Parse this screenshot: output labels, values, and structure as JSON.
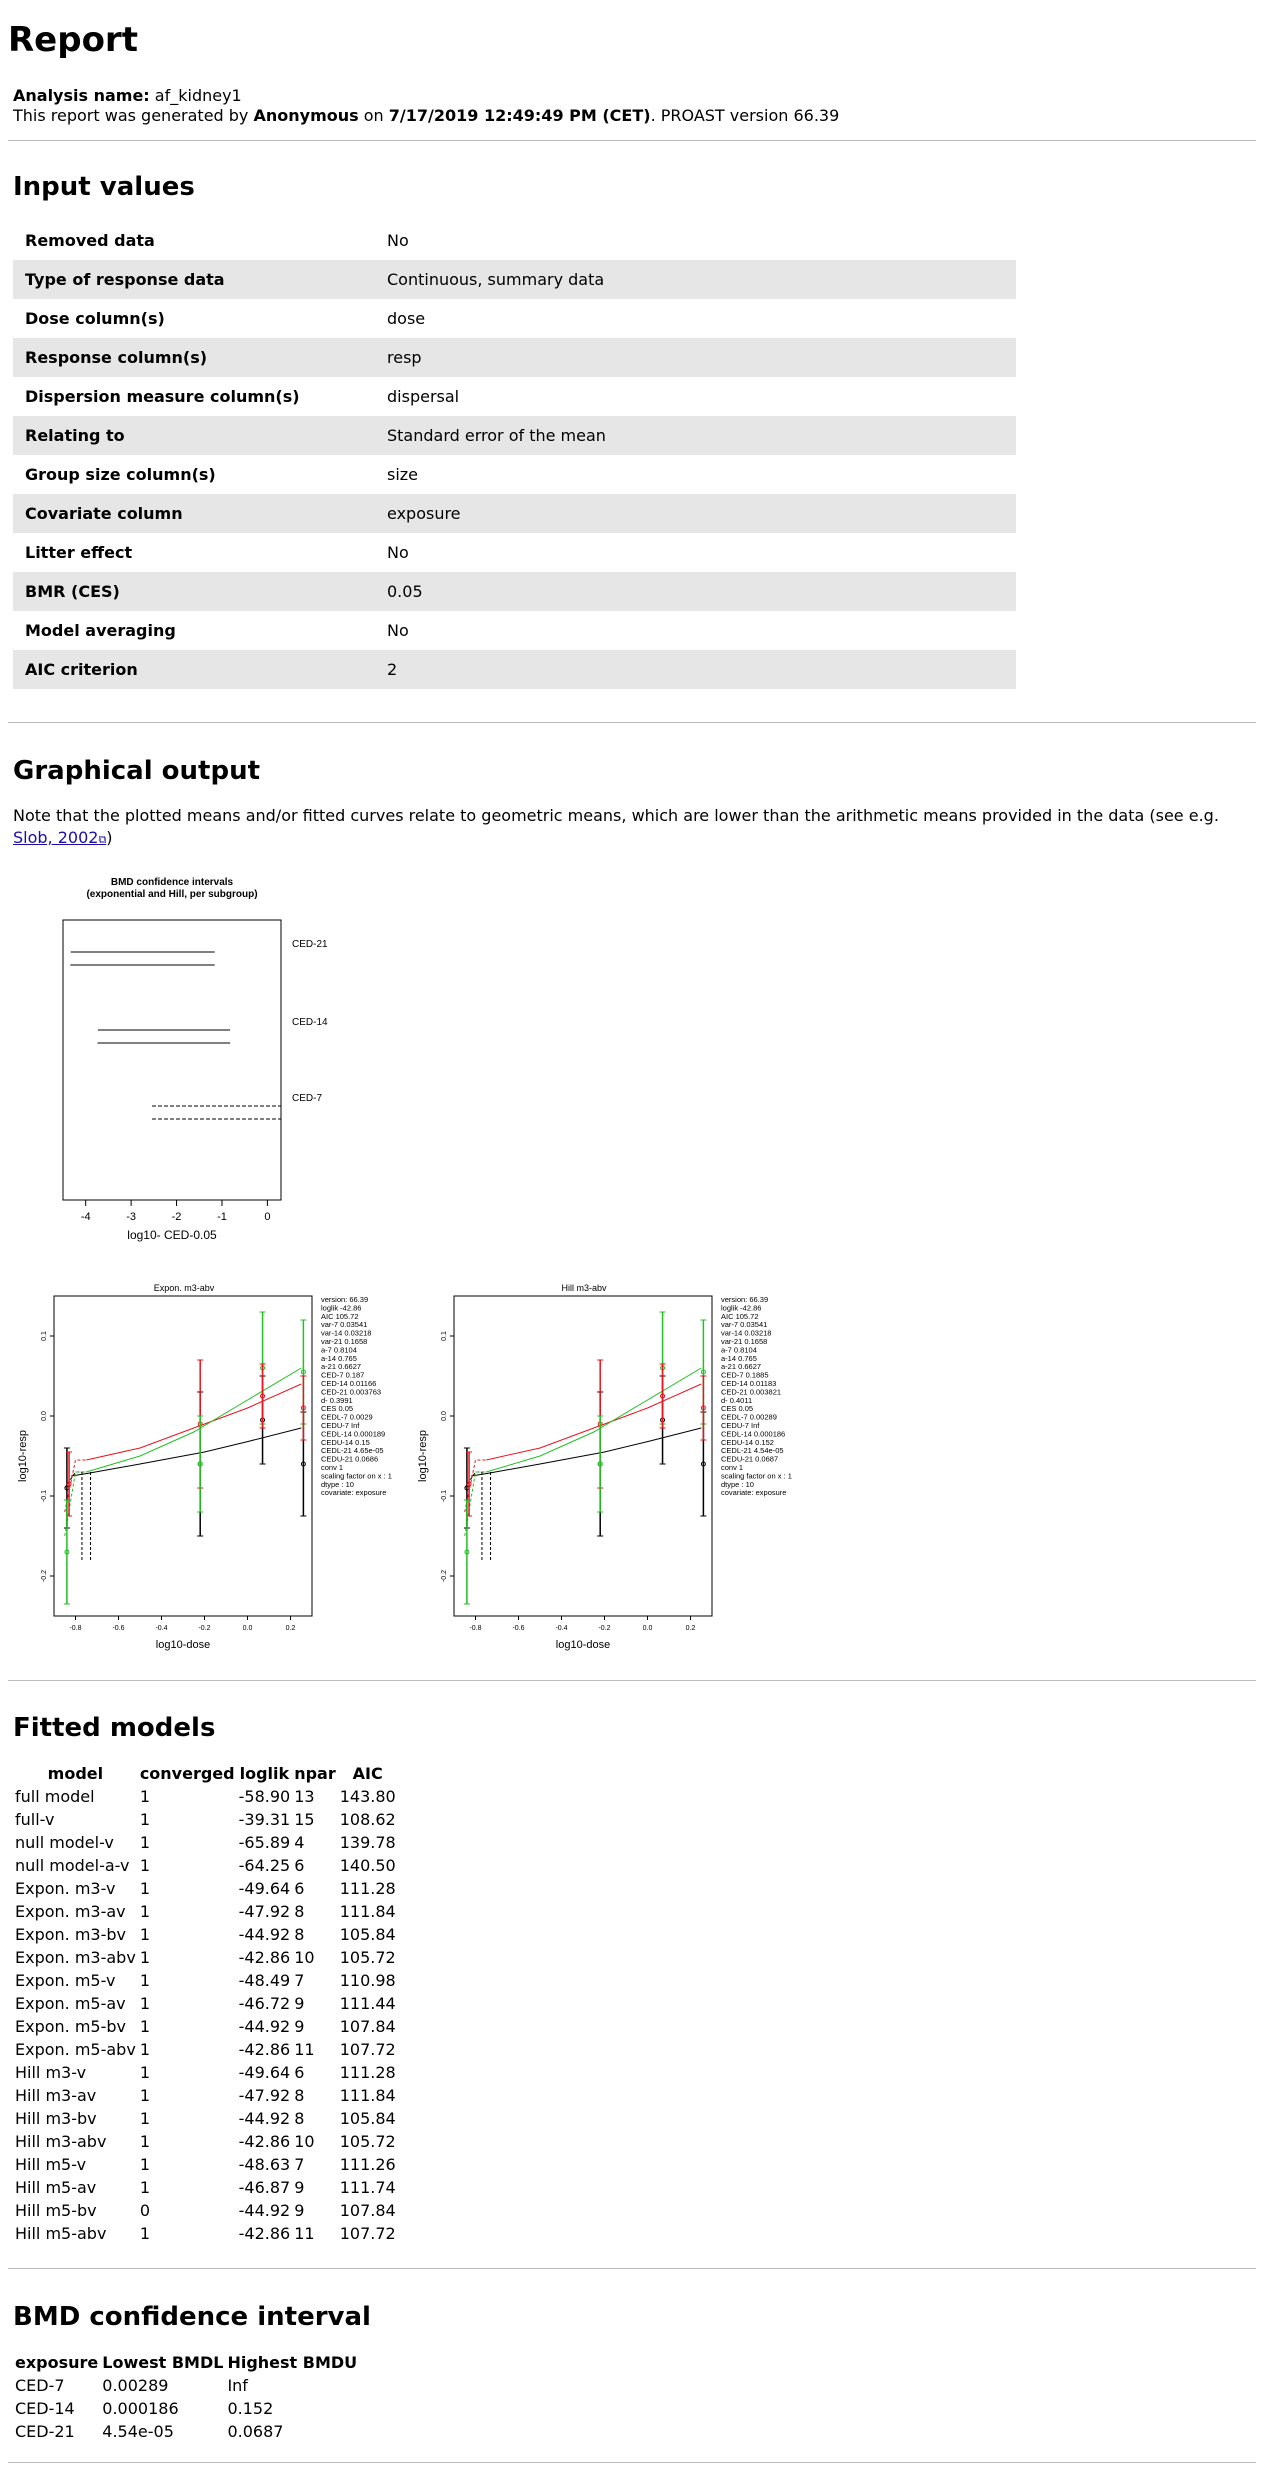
{
  "report": {
    "title": "Report",
    "analysis_label": "Analysis name:",
    "analysis_name": "af_kidney1",
    "gen_prefix": "This report was generated by",
    "author": "Anonymous",
    "gen_on": "on",
    "datetime": "7/17/2019 12:49:49 PM (CET)",
    "version_text": ". PROAST version 66.39"
  },
  "inputs": {
    "title": "Input values",
    "rows": [
      {
        "k": "Removed data",
        "v": "No"
      },
      {
        "k": "Type of response data",
        "v": "Continuous, summary data"
      },
      {
        "k": "Dose column(s)",
        "v": "dose"
      },
      {
        "k": "Response column(s)",
        "v": "resp"
      },
      {
        "k": "Dispersion measure column(s)",
        "v": "dispersal"
      },
      {
        "k": "Relating to",
        "v": "Standard error of the mean"
      },
      {
        "k": "Group size column(s)",
        "v": "size"
      },
      {
        "k": "Covariate column",
        "v": "exposure"
      },
      {
        "k": "Litter effect",
        "v": "No"
      },
      {
        "k": "BMR (CES)",
        "v": "0.05"
      },
      {
        "k": "Model averaging",
        "v": "No"
      },
      {
        "k": "AIC criterion",
        "v": "2"
      }
    ]
  },
  "graphical": {
    "title": "Graphical output",
    "note_pre": "Note that the plotted means and/or fitted curves relate to geometric means, which are lower than the arithmetic means provided in the data (see e.g.",
    "link": "Slob, 2002",
    "link_icon": "external-link-icon",
    "note_post": ")"
  },
  "chart_data": [
    {
      "type": "interval",
      "title": "BMD confidence intervals",
      "subtitle": "(exponential and Hill, per subgroup)",
      "xlabel": "log10- CED-0.05",
      "xlim": [
        -4.5,
        0.3
      ],
      "xticks": [
        "-4",
        "-3",
        "-2",
        "-1",
        "0"
      ],
      "groups": [
        {
          "name": "CED-21",
          "intervals": [
            [
              -4.33,
              -1.16
            ],
            [
              -4.34,
              -1.16
            ]
          ],
          "style": "solid"
        },
        {
          "name": "CED-14",
          "intervals": [
            [
              -3.73,
              -0.82
            ],
            [
              -3.74,
              -0.82
            ]
          ],
          "style": "solid"
        },
        {
          "name": "CED-7",
          "intervals": [
            [
              -2.54,
              0.3
            ],
            [
              -2.54,
              0.3
            ]
          ],
          "style": "dashed"
        }
      ]
    },
    {
      "type": "scatter",
      "title": "Expon. m3-abv",
      "xlabel": "log10-dose",
      "ylabel": "log10-resp",
      "xlim": [
        -0.9,
        0.3
      ],
      "ylim": [
        -0.25,
        0.15
      ],
      "xticks": [
        "-0.8",
        "-0.6",
        "-0.4",
        "-0.2",
        "0.0",
        "0.2"
      ],
      "yticks": [
        "-0.2",
        "-0.1",
        "0.0",
        "0.1"
      ],
      "annotations": [
        "version: 66.39",
        "loglik  -42.86",
        "AIC  105.72",
        "var-7  0.03541",
        "var-14  0.03218",
        "var-21  0.1658",
        "a-7  0.8104",
        "a-14  0.765",
        "a-21  0.6627",
        "CED-7  0.187",
        "CED-14  0.01166",
        "CED-21  0.003763",
        "d-  0.3991",
        "CES  0.05",
        "CEDL-7  0.0029",
        "CEDU-7  Inf",
        "CEDL-14  0.000189",
        "CEDU-14  0.15",
        "CEDL-21  4.65e-05",
        "CEDU-21  0.0686",
        "conv  1",
        "scaling factor on x : 1",
        "dtype : 10",
        "covariate: exposure"
      ]
    },
    {
      "type": "scatter",
      "title": "Hill m3-abv",
      "xlabel": "log10-dose",
      "ylabel": "log10-resp",
      "xlim": [
        -0.9,
        0.3
      ],
      "ylim": [
        -0.25,
        0.15
      ],
      "xticks": [
        "-0.8",
        "-0.6",
        "-0.4",
        "-0.2",
        "0.0",
        "0.2"
      ],
      "yticks": [
        "-0.2",
        "-0.1",
        "0.0",
        "0.1"
      ],
      "annotations": [
        "version: 66.39",
        "loglik  -42.86",
        "AIC  105.72",
        "var-7  0.03541",
        "var-14  0.03218",
        "var-21  0.1658",
        "a-7  0.8104",
        "a-14  0.765",
        "a-21  0.6627",
        "CED-7  0.1885",
        "CED-14  0.01183",
        "CED-21  0.003821",
        "d-  0.4011",
        "CES  0.05",
        "CEDL-7  0.00289",
        "CEDU-7  Inf",
        "CEDL-14  0.000186",
        "CEDU-14  0.152",
        "CEDL-21  4.54e-05",
        "CEDU-21  0.0687",
        "conv  1",
        "scaling factor on x : 1",
        "dtype : 10",
        "covariate: exposure"
      ]
    }
  ],
  "fitted": {
    "title": "Fitted models",
    "headers": [
      "model",
      "converged",
      "loglik",
      "npar",
      "AIC"
    ],
    "rows": [
      [
        "full model",
        "1",
        "-58.90",
        "13",
        "143.80"
      ],
      [
        "full-v",
        "1",
        "-39.31",
        "15",
        "108.62"
      ],
      [
        "null model-v",
        "1",
        "-65.89",
        "4",
        "139.78"
      ],
      [
        "null model-a-v",
        "1",
        "-64.25",
        "6",
        "140.50"
      ],
      [
        "Expon. m3-v",
        "1",
        "-49.64",
        "6",
        "111.28"
      ],
      [
        "Expon. m3-av",
        "1",
        "-47.92",
        "8",
        "111.84"
      ],
      [
        "Expon. m3-bv",
        "1",
        "-44.92",
        "8",
        "105.84"
      ],
      [
        "Expon. m3-abv",
        "1",
        "-42.86",
        "10",
        "105.72"
      ],
      [
        "Expon. m5-v",
        "1",
        "-48.49",
        "7",
        "110.98"
      ],
      [
        "Expon. m5-av",
        "1",
        "-46.72",
        "9",
        "111.44"
      ],
      [
        "Expon. m5-bv",
        "1",
        "-44.92",
        "9",
        "107.84"
      ],
      [
        "Expon. m5-abv",
        "1",
        "-42.86",
        "11",
        "107.72"
      ],
      [
        "Hill m3-v",
        "1",
        "-49.64",
        "6",
        "111.28"
      ],
      [
        "Hill m3-av",
        "1",
        "-47.92",
        "8",
        "111.84"
      ],
      [
        "Hill m3-bv",
        "1",
        "-44.92",
        "8",
        "105.84"
      ],
      [
        "Hill m3-abv",
        "1",
        "-42.86",
        "10",
        "105.72"
      ],
      [
        "Hill m5-v",
        "1",
        "-48.63",
        "7",
        "111.26"
      ],
      [
        "Hill m5-av",
        "1",
        "-46.87",
        "9",
        "111.74"
      ],
      [
        "Hill m5-bv",
        "0",
        "-44.92",
        "9",
        "107.84"
      ],
      [
        "Hill m5-abv",
        "1",
        "-42.86",
        "11",
        "107.72"
      ]
    ]
  },
  "bmd": {
    "title": "BMD confidence interval",
    "headers": [
      "exposure",
      "Lowest BMDL",
      "Highest BMDU"
    ],
    "rows": [
      [
        "CED-7",
        "0.00289",
        "Inf"
      ],
      [
        "CED-14",
        "0.000186",
        "0.152"
      ],
      [
        "CED-21",
        "4.54e-05",
        "0.0687"
      ]
    ]
  },
  "colors": {
    "black": "#000000",
    "red": "#e8141e",
    "green": "#22c022",
    "ltgreen": "#66dd66",
    "header_row": "#e6e6e6"
  }
}
